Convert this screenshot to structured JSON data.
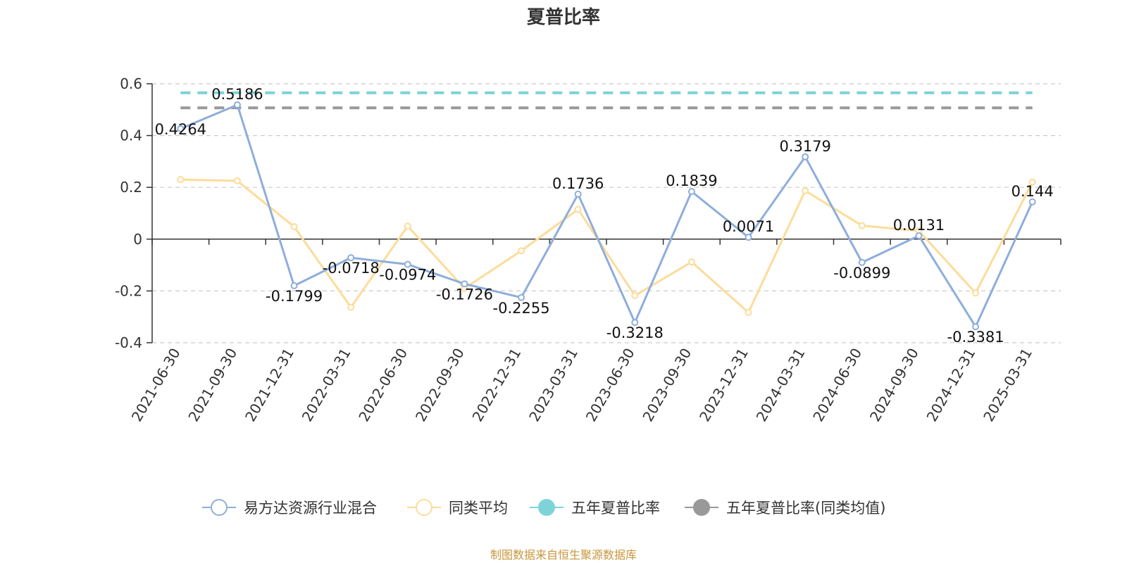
{
  "chart_data": {
    "type": "line",
    "title": "夏普比率",
    "x": [
      "2021-06-30",
      "2021-09-30",
      "2021-12-31",
      "2022-03-31",
      "2022-06-30",
      "2022-09-30",
      "2022-12-31",
      "2023-03-31",
      "2023-06-30",
      "2023-09-30",
      "2023-12-31",
      "2024-03-31",
      "2024-06-30",
      "2024-09-30",
      "2024-12-31",
      "2025-03-31"
    ],
    "ylim": [
      -0.4,
      0.6
    ],
    "yticks": [
      "0.6",
      "0.4",
      "0.2",
      "0",
      "-0.2",
      "-0.4"
    ],
    "ytick_values": [
      0.6,
      0.4,
      0.2,
      0,
      -0.2,
      -0.4
    ],
    "grid": true,
    "legend_position": "bottom",
    "series": [
      {
        "name": "易方达资源行业混合",
        "color": "#8eaedb",
        "values": [
          0.4264,
          0.5186,
          -0.1799,
          -0.0718,
          -0.0974,
          -0.1726,
          -0.2255,
          0.1736,
          -0.3218,
          0.1839,
          0.0071,
          0.3179,
          -0.0899,
          0.0131,
          -0.3381,
          0.144
        ],
        "labels": [
          "0.4264",
          "0.5186",
          "-0.1799",
          "-0.0718",
          "-0.0974",
          "-0.1726",
          "-0.2255",
          "0.1736",
          "-0.3218",
          "0.1839",
          "0.0071",
          "0.3179",
          "-0.0899",
          "0.0131",
          "-0.3381",
          "0.144"
        ]
      },
      {
        "name": "同类平均",
        "color": "#fddc9a",
        "values": [
          0.23,
          0.225,
          0.048,
          -0.263,
          0.05,
          -0.19,
          -0.045,
          0.115,
          -0.218,
          -0.088,
          -0.283,
          0.187,
          0.052,
          0.032,
          -0.208,
          0.22
        ]
      },
      {
        "name": "五年夏普比率",
        "color": "#7dd3d8",
        "constant": 0.565
      },
      {
        "name": "五年夏普比率(同类均值)",
        "color": "#999999",
        "constant": 0.507
      }
    ],
    "source": "制图数据来自恒生聚源数据库"
  }
}
